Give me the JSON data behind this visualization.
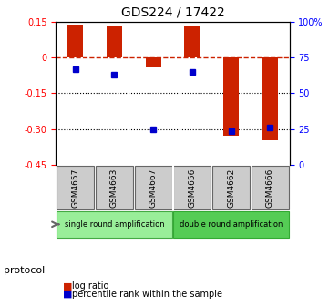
{
  "title": "GDS224 / 17422",
  "samples": [
    "GSM4657",
    "GSM4663",
    "GSM4667",
    "GSM4656",
    "GSM4662",
    "GSM4666"
  ],
  "log_ratios": [
    0.138,
    0.132,
    -0.04,
    0.128,
    -0.328,
    -0.345
  ],
  "percentile_ranks": [
    67,
    63,
    25,
    65,
    24,
    26
  ],
  "ylim_left": [
    -0.45,
    0.15
  ],
  "ylim_right": [
    0,
    100
  ],
  "yticks_left": [
    0.15,
    0,
    -0.15,
    -0.3,
    -0.45
  ],
  "yticks_right": [
    100,
    75,
    50,
    25,
    0
  ],
  "ytick_labels_left": [
    "0.15",
    "0",
    "-0.15",
    "-0.30",
    "-0.45"
  ],
  "ytick_labels_right": [
    "100%",
    "75",
    "50",
    "25",
    "0"
  ],
  "hlines_dotted": [
    -0.15,
    -0.3
  ],
  "hline_dashed": 0,
  "bar_color": "#CC2200",
  "dot_color": "#0000CC",
  "protocol_groups": [
    {
      "label": "single round amplification",
      "samples": [
        "GSM4657",
        "GSM4663",
        "GSM4667"
      ],
      "color": "#99EE99"
    },
    {
      "label": "double round amplification",
      "samples": [
        "GSM4656",
        "GSM4662",
        "GSM4666"
      ],
      "color": "#55CC55"
    }
  ],
  "protocol_label": "protocol",
  "legend_items": [
    {
      "label": "log ratio",
      "color": "#CC2200",
      "marker": "s"
    },
    {
      "label": "percentile rank within the sample",
      "color": "#0000CC",
      "marker": "s"
    }
  ]
}
